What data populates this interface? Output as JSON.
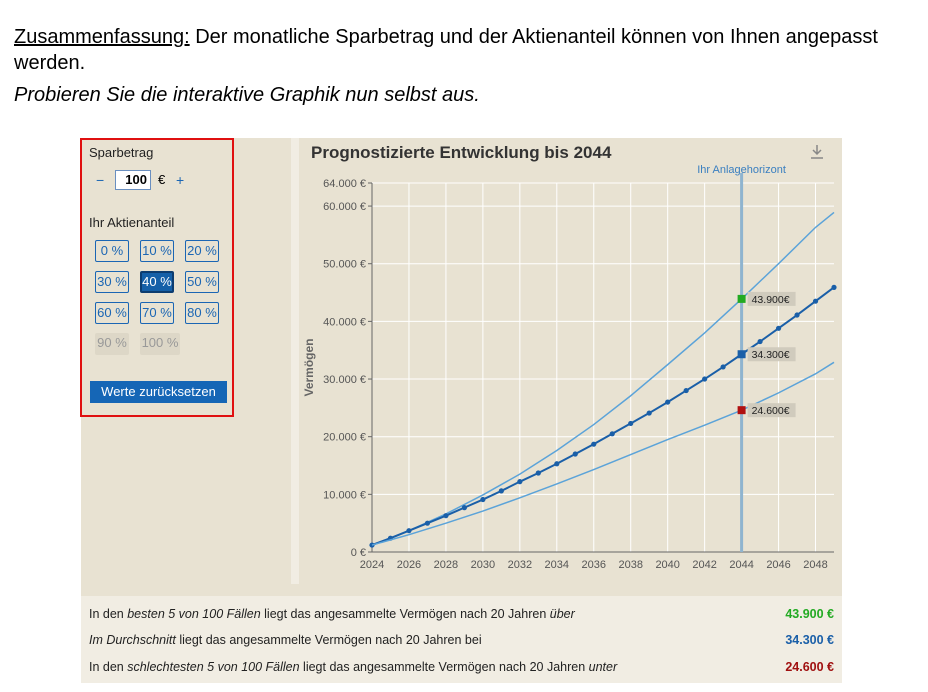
{
  "intro": {
    "heading": "Zusammenfassung:",
    "text": " Der monatliche Sparbetrag und der Aktienanteil können von Ihnen angepasst werden.",
    "italic": "Probieren Sie die interaktive Graphik nun selbst aus."
  },
  "controls": {
    "sparbetrag_label": "Sparbetrag",
    "minus": "−",
    "amount": "100",
    "currency": "€",
    "plus": "+",
    "aktienanteil_label": "Ihr Aktienanteil",
    "options": [
      "0 %",
      "10 %",
      "20 %",
      "30 %",
      "40 %",
      "50 %",
      "60 %",
      "70 %",
      "80 %",
      "90 %",
      "100 %"
    ],
    "selected": "40 %",
    "disabled": [
      "90 %",
      "100 %"
    ],
    "reset_label": "Werte zurücksetzen"
  },
  "chart_data": {
    "type": "line",
    "title": "Prognostizierte Entwicklung bis 2044",
    "ylabel": "Vermögen",
    "xlabel": "",
    "xlim": [
      2024,
      2049
    ],
    "ylim": [
      0,
      64000
    ],
    "x_ticks": [
      "2024",
      "2026",
      "2028",
      "2030",
      "2032",
      "2034",
      "2036",
      "2038",
      "2040",
      "2042",
      "2044",
      "2046",
      "2048"
    ],
    "y_ticks": [
      {
        "value": 0,
        "label": "0 €"
      },
      {
        "value": 10000,
        "label": "10.000 €"
      },
      {
        "value": 20000,
        "label": "20.000 €"
      },
      {
        "value": 30000,
        "label": "30.000 €"
      },
      {
        "value": 40000,
        "label": "40.000 €"
      },
      {
        "value": 50000,
        "label": "50.000 €"
      },
      {
        "value": 60000,
        "label": "60.000 €"
      },
      {
        "value": 64000,
        "label": "64.000 €"
      }
    ],
    "horizon_label": "Ihr Anlagehorizont",
    "horizon_year": 2044,
    "colors": {
      "upper": "#5ba3d9",
      "median": "#1a5fa8",
      "lower": "#5ba3d9",
      "horizon": "#8fb4cf",
      "best": "#22aa22",
      "avg": "#1a5fa8",
      "worst": "#b01010"
    },
    "series": [
      {
        "key": "upper",
        "x": [
          2024,
          2026,
          2028,
          2030,
          2032,
          2034,
          2036,
          2038,
          2040,
          2042,
          2044,
          2046,
          2048,
          2049
        ],
        "values": [
          1200,
          3700,
          6600,
          9900,
          13500,
          17600,
          22100,
          27100,
          32500,
          38000,
          43900,
          50000,
          56300,
          58900
        ]
      },
      {
        "key": "median",
        "x": [
          2024,
          2025,
          2026,
          2027,
          2028,
          2029,
          2030,
          2031,
          2032,
          2033,
          2034,
          2035,
          2036,
          2037,
          2038,
          2039,
          2040,
          2041,
          2042,
          2043,
          2044,
          2045,
          2046,
          2047,
          2048,
          2049
        ],
        "values": [
          1200,
          2400,
          3700,
          5000,
          6300,
          7700,
          9100,
          10600,
          12200,
          13700,
          15300,
          17000,
          18700,
          20500,
          22300,
          24100,
          26000,
          28000,
          30000,
          32100,
          34300,
          36500,
          38800,
          41100,
          43500,
          45900
        ]
      },
      {
        "key": "lower",
        "x": [
          2024,
          2026,
          2028,
          2030,
          2032,
          2034,
          2036,
          2038,
          2040,
          2042,
          2044,
          2046,
          2048,
          2049
        ],
        "values": [
          1200,
          3000,
          5000,
          7100,
          9400,
          11800,
          14300,
          16900,
          19500,
          22000,
          24600,
          27600,
          30900,
          32900
        ]
      }
    ],
    "markers": [
      {
        "key": "best",
        "value": 43900,
        "label": "43.900€"
      },
      {
        "key": "avg",
        "value": 34300,
        "label": "34.300€"
      },
      {
        "key": "worst",
        "value": 24600,
        "label": "24.600€"
      }
    ]
  },
  "summary": [
    {
      "prefix": "In den ",
      "em": "besten 5 von 100 Fällen",
      "middle": " liegt das angesammelte Vermögen nach 20 Jahren ",
      "suffix_em": "über",
      "value": "43.900 €",
      "color": "#22aa22"
    },
    {
      "prefix": "",
      "em": "Im Durchschnitt",
      "middle": " liegt das angesammelte Vermögen nach 20 Jahren bei",
      "suffix_em": "",
      "value": "34.300 €",
      "color": "#1a5fa8"
    },
    {
      "prefix": "In den ",
      "em": "schlechtesten 5 von 100 Fällen",
      "middle": " liegt das angesammelte Vermögen nach 20 Jahren ",
      "suffix_em": "unter",
      "value": "24.600 €",
      "color": "#a01010"
    }
  ]
}
